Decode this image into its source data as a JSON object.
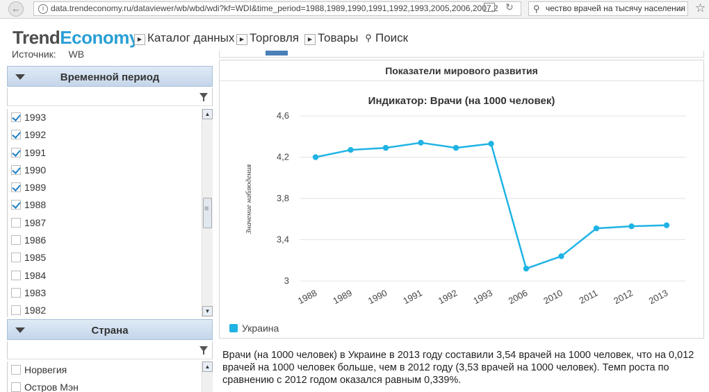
{
  "browser": {
    "url": "data.trendeconomy.ru/dataviewer/wb/wbd/wdi?kf=WDI&time_period=1988,1989,1990,1991,1992,1993,2005,2006,2007,2",
    "search_text": "чество врачей на тысячу населения"
  },
  "header": {
    "logo_part1": "Trend",
    "logo_part2": "Economy",
    "menu": [
      "Каталог данных",
      "Торговля",
      "Товары",
      "Поиск"
    ]
  },
  "sidebar": {
    "source_label": "Источник:",
    "source_value": "WB",
    "period_panel_title": "Временной период",
    "years": [
      {
        "label": "1993",
        "checked": true
      },
      {
        "label": "1992",
        "checked": true
      },
      {
        "label": "1991",
        "checked": true
      },
      {
        "label": "1990",
        "checked": true
      },
      {
        "label": "1989",
        "checked": true
      },
      {
        "label": "1988",
        "checked": true
      },
      {
        "label": "1987",
        "checked": false
      },
      {
        "label": "1986",
        "checked": false
      },
      {
        "label": "1985",
        "checked": false
      },
      {
        "label": "1984",
        "checked": false
      },
      {
        "label": "1983",
        "checked": false
      },
      {
        "label": "1982",
        "checked": false
      }
    ],
    "country_panel_title": "Страна",
    "countries": [
      {
        "label": "Норвегия",
        "checked": false
      },
      {
        "label": "Остров Мэн",
        "checked": false
      }
    ]
  },
  "card": {
    "title": "Показатели мирового развития"
  },
  "chart_data": {
    "type": "line",
    "title": "Индикатор: Врачи (на 1000 человек)",
    "ylabel": "Значение наблюдения",
    "xlabel": "",
    "categories": [
      "1988",
      "1989",
      "1990",
      "1991",
      "1992",
      "1993",
      "2006",
      "2010",
      "2011",
      "2012",
      "2013"
    ],
    "series": [
      {
        "name": "Украина",
        "color": "#1fb3e4",
        "values": [
          4.2,
          4.27,
          4.29,
          4.34,
          4.29,
          4.33,
          3.12,
          3.24,
          3.51,
          3.53,
          3.54
        ]
      }
    ],
    "ylim": [
      3,
      4.6
    ],
    "yticks": [
      "3",
      "3,4",
      "3,8",
      "4,2",
      "4,6"
    ],
    "ytick_values": [
      3,
      3.4,
      3.8,
      4.2,
      4.6
    ],
    "grid": true,
    "legend": "bottom-left"
  },
  "description": "Врачи (на 1000 человек) в Украине в 2013 году составили 3,54 врачей на 1000 человек, что на 0,012 врачей на 1000 человек больше, чем в 2012 году (3,53 врачей на 1000 человек). Темп роста по сравнению с 2012 годом оказался равным 0,339%."
}
